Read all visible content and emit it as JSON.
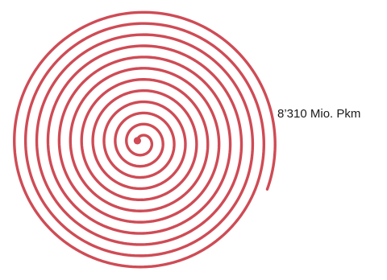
{
  "chart_data": {
    "type": "spiral",
    "value_label": "8’310 Mio. Pkm",
    "turns": 11.5,
    "color": "#cf4b55"
  }
}
